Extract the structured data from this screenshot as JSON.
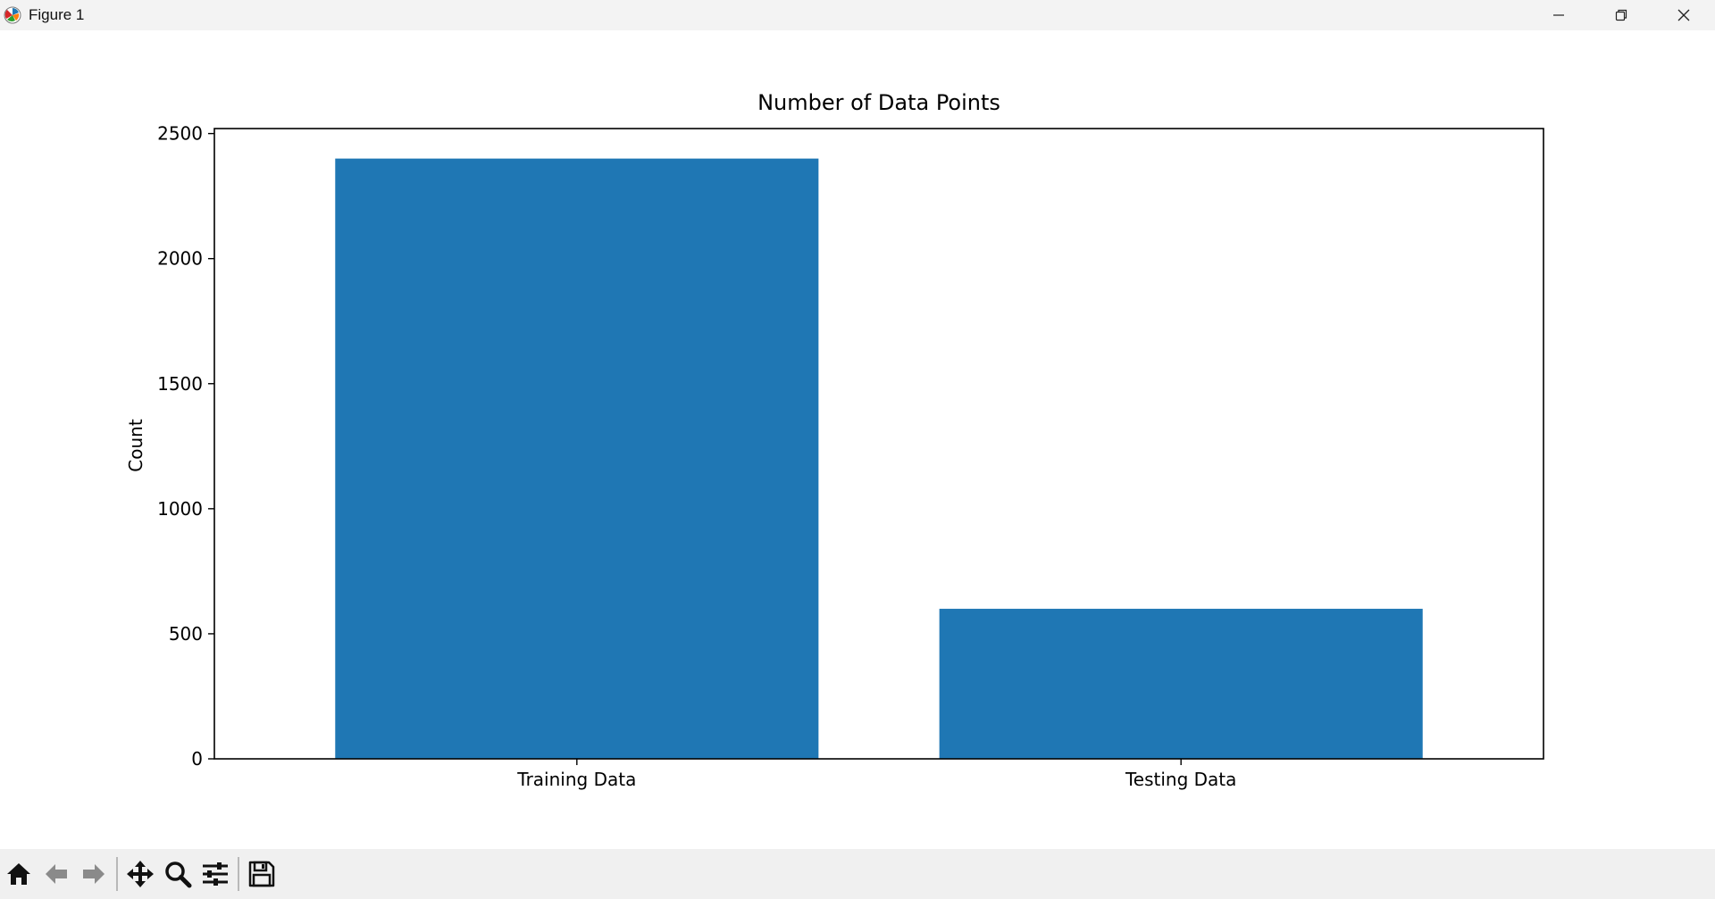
{
  "window": {
    "title": "Figure 1",
    "controls": [
      "minimize",
      "restore",
      "close"
    ]
  },
  "toolbar": {
    "tools": [
      {
        "name": "home-icon"
      },
      {
        "name": "back-arrow-icon"
      },
      {
        "name": "forward-arrow-icon"
      },
      {
        "name": "pan-icon"
      },
      {
        "name": "zoom-icon"
      },
      {
        "name": "configure-subplots-icon"
      },
      {
        "name": "save-icon"
      }
    ]
  },
  "chart_data": {
    "type": "bar",
    "title": "Number of Data Points",
    "xlabel": "",
    "ylabel": "Count",
    "categories": [
      "Training Data",
      "Testing Data"
    ],
    "values": [
      2400,
      600
    ],
    "ylim": [
      0,
      2520
    ],
    "yticks": [
      0,
      500,
      1000,
      1500,
      2000,
      2500
    ],
    "bar_color": "#1f77b4",
    "grid": false,
    "legend": "none"
  }
}
